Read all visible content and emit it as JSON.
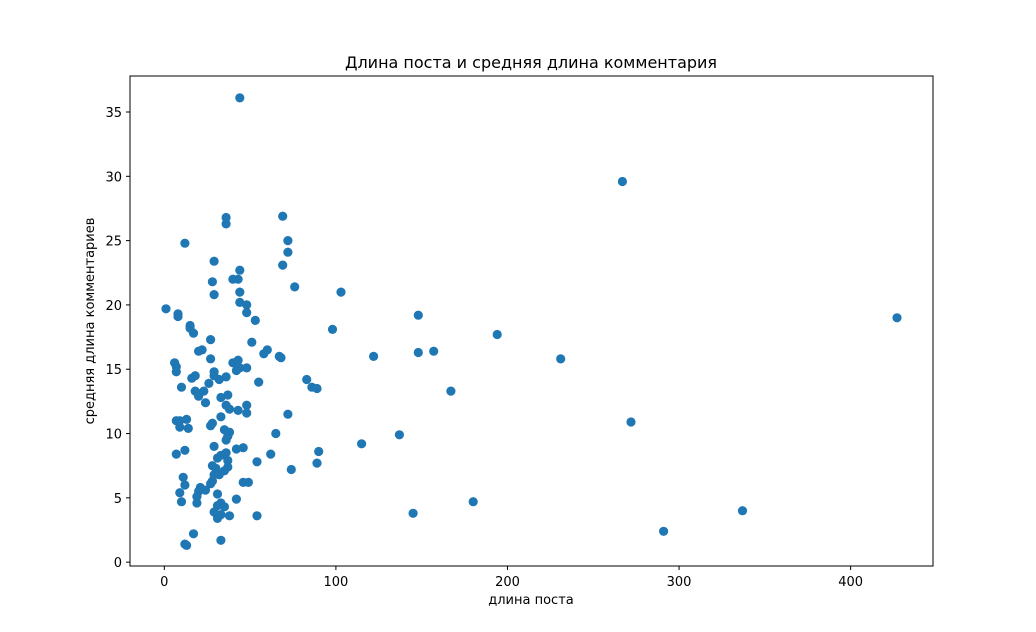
{
  "chart_data": {
    "type": "scatter",
    "title": "Длина поста и средняя длина комментария",
    "xlabel": "длина поста",
    "ylabel": "средняя длина комментариев",
    "xlim": [
      -20,
      448
    ],
    "ylim": [
      -0.3,
      37.8
    ],
    "xticks": [
      0,
      100,
      200,
      300,
      400
    ],
    "xtick_labels": [
      "0",
      "100",
      "200",
      "300",
      "400"
    ],
    "yticks": [
      0,
      5,
      10,
      15,
      20,
      25,
      30,
      35
    ],
    "ytick_labels": [
      "0",
      "5",
      "10",
      "15",
      "20",
      "25",
      "30",
      "35"
    ],
    "grid": false,
    "color": "#1f77b4",
    "points": [
      [
        44,
        36.1
      ],
      [
        267,
        29.6
      ],
      [
        69,
        26.9
      ],
      [
        36,
        26.8
      ],
      [
        36,
        26.3
      ],
      [
        72,
        25.0
      ],
      [
        12,
        24.8
      ],
      [
        72,
        24.1
      ],
      [
        29,
        23.4
      ],
      [
        69,
        23.1
      ],
      [
        44,
        22.7
      ],
      [
        40,
        22.0
      ],
      [
        43,
        22.0
      ],
      [
        28,
        21.8
      ],
      [
        76,
        21.4
      ],
      [
        103,
        21.0
      ],
      [
        44,
        21.0
      ],
      [
        29,
        20.8
      ],
      [
        44,
        20.2
      ],
      [
        48,
        20.0
      ],
      [
        1,
        19.7
      ],
      [
        48,
        19.4
      ],
      [
        8,
        19.3
      ],
      [
        148,
        19.2
      ],
      [
        8,
        19.1
      ],
      [
        427,
        19.0
      ],
      [
        53,
        18.8
      ],
      [
        15,
        18.4
      ],
      [
        15,
        18.2
      ],
      [
        98,
        18.1
      ],
      [
        17,
        17.8
      ],
      [
        194,
        17.7
      ],
      [
        27,
        17.3
      ],
      [
        51,
        17.1
      ],
      [
        60,
        16.5
      ],
      [
        22,
        16.5
      ],
      [
        148,
        16.3
      ],
      [
        157,
        16.4
      ],
      [
        58,
        16.2
      ],
      [
        122,
        16.0
      ],
      [
        20,
        16.4
      ],
      [
        68,
        15.9
      ],
      [
        67,
        16.0
      ],
      [
        231,
        15.8
      ],
      [
        27,
        15.8
      ],
      [
        40,
        15.5
      ],
      [
        43,
        15.7
      ],
      [
        6,
        15.5
      ],
      [
        7,
        15.2
      ],
      [
        44,
        15.1
      ],
      [
        42,
        14.9
      ],
      [
        7,
        14.8
      ],
      [
        48,
        15.1
      ],
      [
        29,
        14.8
      ],
      [
        16,
        14.3
      ],
      [
        18,
        14.5
      ],
      [
        32,
        14.2
      ],
      [
        36,
        14.4
      ],
      [
        29,
        14.5
      ],
      [
        83,
        14.2
      ],
      [
        55,
        14.0
      ],
      [
        26,
        13.9
      ],
      [
        10,
        13.6
      ],
      [
        86,
        13.6
      ],
      [
        89,
        13.5
      ],
      [
        167,
        13.3
      ],
      [
        18,
        13.3
      ],
      [
        23,
        13.3
      ],
      [
        20,
        12.9
      ],
      [
        37,
        13.0
      ],
      [
        33,
        12.8
      ],
      [
        24,
        12.4
      ],
      [
        36,
        12.2
      ],
      [
        48,
        12.2
      ],
      [
        38,
        11.9
      ],
      [
        43,
        11.8
      ],
      [
        48,
        11.6
      ],
      [
        72,
        11.5
      ],
      [
        33,
        11.3
      ],
      [
        13,
        11.1
      ],
      [
        7,
        11.0
      ],
      [
        9,
        11.0
      ],
      [
        272,
        10.9
      ],
      [
        28,
        10.8
      ],
      [
        27,
        10.6
      ],
      [
        9,
        10.5
      ],
      [
        14,
        10.4
      ],
      [
        35,
        10.3
      ],
      [
        38,
        10.1
      ],
      [
        65,
        10.0
      ],
      [
        137,
        9.9
      ],
      [
        37,
        9.8
      ],
      [
        36,
        9.5
      ],
      [
        115,
        9.2
      ],
      [
        29,
        9.0
      ],
      [
        46,
        8.9
      ],
      [
        42,
        8.8
      ],
      [
        12,
        8.7
      ],
      [
        90,
        8.6
      ],
      [
        36,
        8.5
      ],
      [
        62,
        8.4
      ],
      [
        7,
        8.4
      ],
      [
        33,
        8.3
      ],
      [
        31,
        8.1
      ],
      [
        37,
        7.9
      ],
      [
        54,
        7.8
      ],
      [
        89,
        7.7
      ],
      [
        28,
        7.5
      ],
      [
        30,
        7.3
      ],
      [
        37,
        7.4
      ],
      [
        74,
        7.2
      ],
      [
        35,
        7.1
      ],
      [
        32,
        6.8
      ],
      [
        29,
        6.8
      ],
      [
        11,
        6.6
      ],
      [
        28,
        6.3
      ],
      [
        46,
        6.2
      ],
      [
        49,
        6.2
      ],
      [
        12,
        6.0
      ],
      [
        27,
        6.1
      ],
      [
        21,
        5.8
      ],
      [
        24,
        5.6
      ],
      [
        20,
        5.5
      ],
      [
        9,
        5.4
      ],
      [
        31,
        5.3
      ],
      [
        19,
        5.1
      ],
      [
        42,
        4.9
      ],
      [
        10,
        4.7
      ],
      [
        180,
        4.7
      ],
      [
        19,
        4.6
      ],
      [
        33,
        4.6
      ],
      [
        31,
        4.4
      ],
      [
        35,
        4.3
      ],
      [
        337,
        4.0
      ],
      [
        29,
        3.9
      ],
      [
        145,
        3.8
      ],
      [
        33,
        3.7
      ],
      [
        38,
        3.6
      ],
      [
        54,
        3.6
      ],
      [
        31,
        3.4
      ],
      [
        291,
        2.4
      ],
      [
        17,
        2.2
      ],
      [
        33,
        1.7
      ],
      [
        12,
        1.4
      ],
      [
        13,
        1.3
      ]
    ]
  }
}
